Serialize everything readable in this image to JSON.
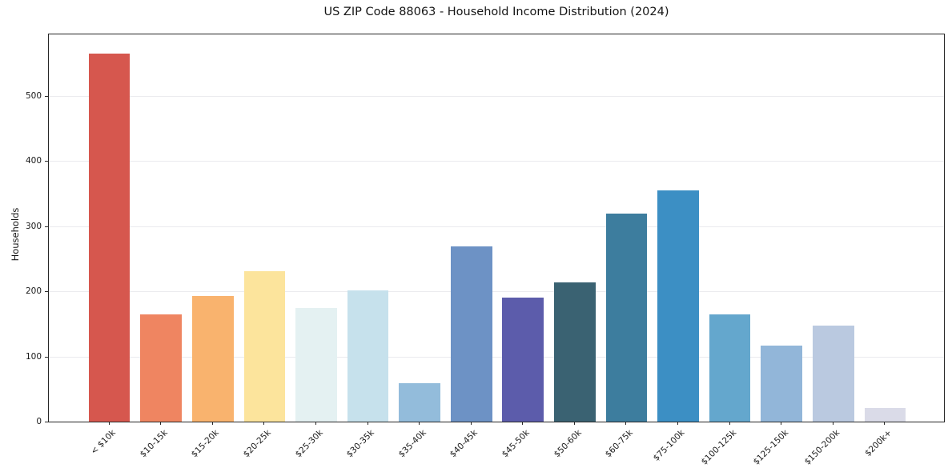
{
  "chart_data": {
    "type": "bar",
    "title": "US ZIP Code 88063 - Household Income Distribution (2024)",
    "xlabel": "",
    "ylabel": "Households",
    "categories": [
      "< $10k",
      "$10-15k",
      "$15-20k",
      "$20-25k",
      "$25-30k",
      "$30-35k",
      "$35-40k",
      "$40-45k",
      "$45-50k",
      "$50-60k",
      "$60-75k",
      "$75-100k",
      "$100-125k",
      "$125-150k",
      "$150-200k",
      "$200k+"
    ],
    "values": [
      565,
      165,
      193,
      231,
      175,
      201,
      59,
      269,
      190,
      214,
      320,
      355,
      165,
      117,
      147,
      21
    ],
    "bar_colors": [
      "#d6574e",
      "#ef8561",
      "#f9b36e",
      "#fce49c",
      "#e4f1f2",
      "#c6e1ec",
      "#93bcdb",
      "#6d92c5",
      "#5c5cab",
      "#3a6272",
      "#3d7d9e",
      "#3c8fc4",
      "#64a7cd",
      "#92b6d9",
      "#bac9e0",
      "#dadbe8"
    ],
    "ylim": [
      0,
      597
    ],
    "yticks": [
      0,
      100,
      200,
      300,
      400,
      500
    ],
    "ytick_labels": [
      "0",
      "100",
      "200",
      "300",
      "400",
      "500"
    ],
    "grid": true,
    "legend_position": "none",
    "background_color": "#ffffff",
    "gridline_color": "#ebebee",
    "spine_color": "#262626",
    "text_color": "#1a1a1a"
  }
}
